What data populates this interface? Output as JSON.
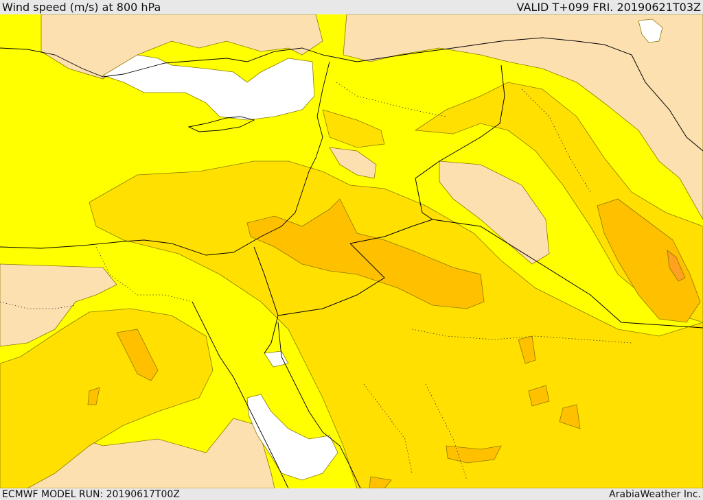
{
  "header": {
    "title": "Wind speed (m/s) at 800 hPa",
    "valid_time": "VALID T+099 FRI. 20190621T03Z"
  },
  "footer": {
    "model_run": "ECMWF MODEL RUN: 20190617T00Z",
    "credit": "ArabiaWeather Inc."
  },
  "map": {
    "colors": {
      "calm": "#ffffff",
      "low": "#fde0b0",
      "moderate": "#ffff00",
      "fresh": "#ffe000",
      "strong": "#ffc000",
      "very_strong": "#ffa020",
      "contour": "#8a7a00",
      "border": "#000000"
    }
  }
}
